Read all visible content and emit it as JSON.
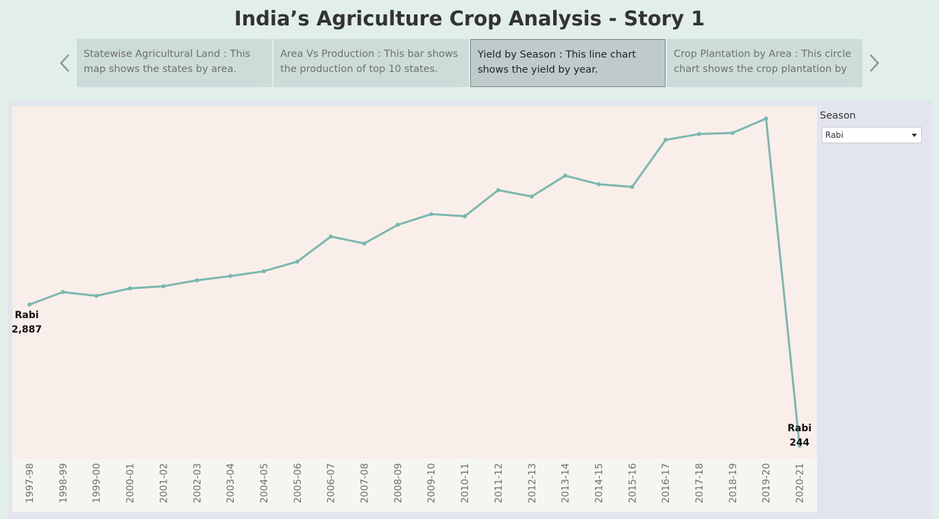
{
  "page": {
    "title": "India’s Agriculture Crop Analysis - Story 1",
    "colors": {
      "background": "#e2eeea",
      "plot_bg": "#f9eee9",
      "axis_bg": "#f4f7ef",
      "line": "#7ab8af"
    }
  },
  "story_nav": {
    "prev_icon": "chevron-left-icon",
    "next_icon": "chevron-right-icon",
    "points": [
      {
        "text": "Statewise Agricultural Land : This map shows the states by area.",
        "active": false
      },
      {
        "text": "Area Vs Production : This bar shows the production of top 10 states.",
        "active": false
      },
      {
        "text": "Yield by Season : This line chart shows the yield by year.",
        "active": true
      },
      {
        "text": "Crop Plantation by Area : This circle chart shows the crop plantation by",
        "active": false
      }
    ]
  },
  "filter": {
    "title": "Season",
    "selected": "Rabi",
    "caret_icon": "caret-down-icon"
  },
  "chart_data": {
    "type": "line",
    "title": "",
    "xlabel": "",
    "ylabel": "",
    "categories": [
      "1997-98",
      "1998-99",
      "1999-00",
      "2000-01",
      "2001-02",
      "2002-03",
      "2003-04",
      "2004-05",
      "2005-06",
      "2006-07",
      "2007-08",
      "2008-09",
      "2009-10",
      "2010-11",
      "2011-12",
      "2012-13",
      "2013-14",
      "2014-15",
      "2015-16",
      "2016-17",
      "2017-18",
      "2018-19",
      "2019-20",
      "2020-21"
    ],
    "series": [
      {
        "name": "Rabi",
        "values": [
          2887,
          3120,
          3050,
          3190,
          3230,
          3340,
          3420,
          3510,
          3690,
          4160,
          4030,
          4380,
          4580,
          4540,
          5030,
          4910,
          5300,
          5140,
          5090,
          5970,
          6080,
          6100,
          6370,
          244
        ]
      }
    ],
    "ylim": [
      0,
      6600
    ],
    "grid": false,
    "legend": "none",
    "annotations": [
      {
        "category": "1997-98",
        "label": "Rabi",
        "value_text": "2,887"
      },
      {
        "category": "2020-21",
        "label": "Rabi",
        "value_text": "244"
      }
    ]
  }
}
